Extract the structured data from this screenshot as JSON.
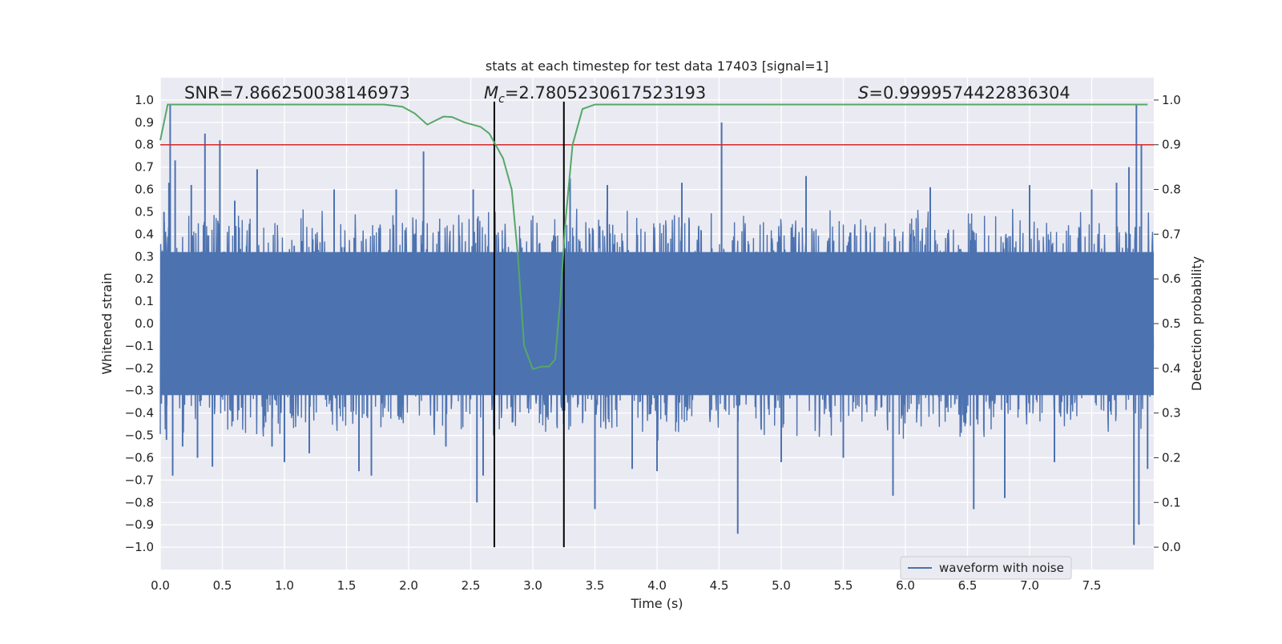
{
  "chart_data": {
    "type": "line",
    "title": "stats at each timestep for test data 17403 [signal=1]",
    "xlabel": "Time (s)",
    "ylabel": "Whitened strain",
    "ylabel_right": "Detection probability",
    "xlim": [
      0.0,
      8.0
    ],
    "ylim": [
      -1.1,
      1.1
    ],
    "ylim_right": [
      -0.05,
      1.05
    ],
    "xticks": [
      "0.0",
      "0.5",
      "1.0",
      "1.5",
      "2.0",
      "2.5",
      "3.0",
      "3.5",
      "4.0",
      "4.5",
      "5.0",
      "5.5",
      "6.0",
      "6.5",
      "7.0",
      "7.5"
    ],
    "yticks": [
      "1.0",
      "0.9",
      "0.8",
      "0.7",
      "0.6",
      "0.5",
      "0.4",
      "0.3",
      "0.2",
      "0.1",
      "0.0",
      "−0.1",
      "−0.2",
      "−0.3",
      "−0.4",
      "−0.5",
      "−0.6",
      "−0.7",
      "−0.8",
      "−0.9",
      "−1.0"
    ],
    "yticks_right": [
      "1.0",
      "0.9",
      "0.8",
      "0.7",
      "0.6",
      "0.5",
      "0.4",
      "0.3",
      "0.2",
      "0.1",
      "0.0"
    ],
    "grid": true,
    "legend": {
      "position": "lower-right",
      "entries": [
        "waveform with noise"
      ]
    },
    "annotations": {
      "snr": "SNR=7.866250038146973",
      "mc_symbol": "M",
      "mc_sub": "c",
      "mc_value": "=2.7805230617523193",
      "s_symbol": "S",
      "s_value": "=0.9999574422836304"
    },
    "threshold_line": {
      "y_right": 0.9,
      "color": "#d62728"
    },
    "vertical_lines_x": [
      2.69,
      3.25
    ],
    "series": [
      {
        "name": "waveform with noise",
        "color": "#4c72b0",
        "axis": "left",
        "typical_band": [
          -0.3,
          0.3
        ],
        "spikes": [
          {
            "x": 0.03,
            "y": 0.5
          },
          {
            "x": 0.05,
            "y": -0.52
          },
          {
            "x": 0.07,
            "y": 0.63
          },
          {
            "x": 0.08,
            "y": 0.98
          },
          {
            "x": 0.1,
            "y": -0.68
          },
          {
            "x": 0.12,
            "y": 0.73
          },
          {
            "x": 0.18,
            "y": -0.55
          },
          {
            "x": 0.25,
            "y": 0.62
          },
          {
            "x": 0.3,
            "y": -0.6
          },
          {
            "x": 0.36,
            "y": 0.85
          },
          {
            "x": 0.42,
            "y": -0.64
          },
          {
            "x": 0.48,
            "y": 0.82
          },
          {
            "x": 0.6,
            "y": 0.55
          },
          {
            "x": 0.78,
            "y": 0.69
          },
          {
            "x": 0.9,
            "y": -0.55
          },
          {
            "x": 1.0,
            "y": -0.62
          },
          {
            "x": 1.2,
            "y": -0.58
          },
          {
            "x": 1.4,
            "y": 0.6
          },
          {
            "x": 1.6,
            "y": -0.66
          },
          {
            "x": 1.7,
            "y": -0.68
          },
          {
            "x": 1.9,
            "y": 0.6
          },
          {
            "x": 2.12,
            "y": 0.77
          },
          {
            "x": 2.3,
            "y": -0.55
          },
          {
            "x": 2.52,
            "y": 0.6
          },
          {
            "x": 2.55,
            "y": -0.8
          },
          {
            "x": 2.6,
            "y": -0.68
          },
          {
            "x": 3.3,
            "y": 0.65
          },
          {
            "x": 3.5,
            "y": -0.83
          },
          {
            "x": 3.6,
            "y": 0.62
          },
          {
            "x": 3.8,
            "y": -0.65
          },
          {
            "x": 4.0,
            "y": -0.66
          },
          {
            "x": 4.2,
            "y": 0.63
          },
          {
            "x": 4.52,
            "y": 0.9
          },
          {
            "x": 4.65,
            "y": -0.94
          },
          {
            "x": 5.0,
            "y": -0.62
          },
          {
            "x": 5.2,
            "y": 0.66
          },
          {
            "x": 5.5,
            "y": -0.6
          },
          {
            "x": 5.9,
            "y": -0.77
          },
          {
            "x": 6.2,
            "y": 0.61
          },
          {
            "x": 6.55,
            "y": -0.83
          },
          {
            "x": 6.8,
            "y": -0.78
          },
          {
            "x": 7.0,
            "y": 0.62
          },
          {
            "x": 7.2,
            "y": -0.62
          },
          {
            "x": 7.5,
            "y": 0.6
          },
          {
            "x": 7.7,
            "y": 0.63
          },
          {
            "x": 7.8,
            "y": 0.7
          },
          {
            "x": 7.84,
            "y": -0.99
          },
          {
            "x": 7.86,
            "y": 0.98
          },
          {
            "x": 7.88,
            "y": -0.9
          },
          {
            "x": 7.9,
            "y": 0.8
          },
          {
            "x": 7.95,
            "y": -0.65
          }
        ]
      },
      {
        "name": "Detection probability",
        "color": "#55a868",
        "axis": "right",
        "x": [
          0.0,
          0.06,
          0.2,
          0.5,
          1.0,
          1.5,
          1.8,
          1.95,
          2.05,
          2.15,
          2.28,
          2.35,
          2.45,
          2.58,
          2.65,
          2.7,
          2.76,
          2.83,
          2.88,
          2.93,
          3.0,
          3.07,
          3.13,
          3.18,
          3.22,
          3.26,
          3.32,
          3.4,
          3.5,
          4.0,
          4.5,
          4.9,
          5.0,
          5.5,
          6.0,
          6.5,
          7.0,
          7.5,
          7.95
        ],
        "y": [
          0.91,
          0.99,
          0.99,
          0.99,
          0.99,
          0.99,
          0.99,
          0.985,
          0.97,
          0.945,
          0.963,
          0.962,
          0.95,
          0.94,
          0.925,
          0.9,
          0.87,
          0.8,
          0.65,
          0.45,
          0.398,
          0.404,
          0.404,
          0.42,
          0.55,
          0.72,
          0.9,
          0.98,
          0.99,
          0.99,
          0.99,
          0.99,
          0.99,
          0.99,
          0.99,
          0.99,
          0.99,
          0.99,
          0.99
        ]
      }
    ]
  }
}
